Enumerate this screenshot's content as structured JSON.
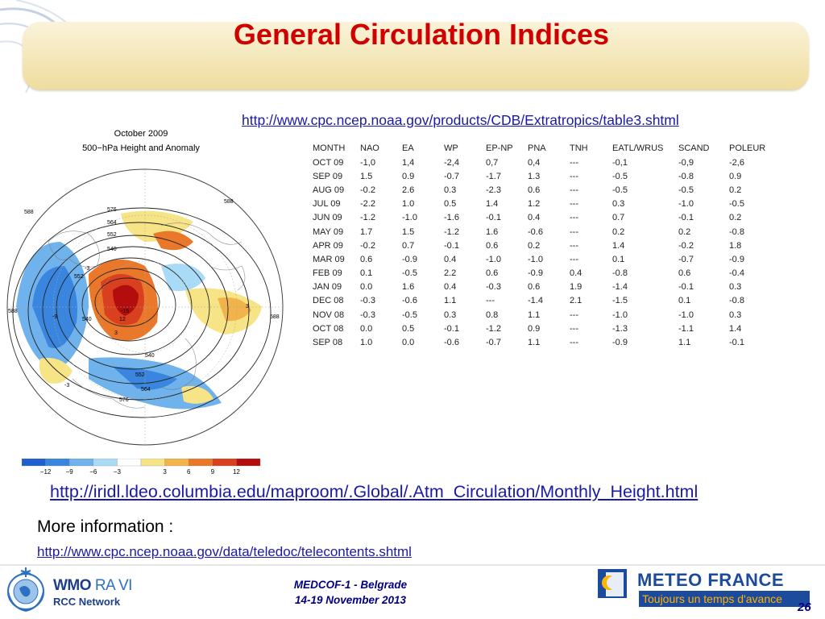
{
  "slide": {
    "title": "General Circulation Indices",
    "link_table": "http://www.cpc.ncep.noaa.gov/products/CDB/Extratropics/table3.shtml",
    "link_map": "http://iridl.ldeo.columbia.edu/maproom/.Global/.Atm_Circulation/Monthly_Height.html",
    "more_info": "More information :",
    "link_more": "http://www.cpc.ncep.noaa.gov/data/teledoc/telecontents.shtml",
    "page_number": "26"
  },
  "map": {
    "title_line1": "October 2009",
    "title_line2": "500−hPa Height and Anomaly",
    "contour_labels": [
      "588",
      "588",
      "588",
      "588",
      "576",
      "564",
      "552",
      "540",
      "540",
      "540",
      "564",
      "576",
      "552",
      "552",
      "-3",
      "-3",
      "3",
      "3",
      "-9",
      "-15",
      "12"
    ],
    "colorbar_ticks": [
      "−12",
      "−9",
      "−6",
      "−3",
      "3",
      "6",
      "9",
      "12"
    ],
    "colorbar_colors": [
      "#1f5fcf",
      "#3a86de",
      "#6fb2ec",
      "#a9daf6",
      "#ffffff",
      "#f7e487",
      "#f2b34a",
      "#e9782a",
      "#d9401f",
      "#b30d0d"
    ]
  },
  "table": {
    "headers": [
      "MONTH",
      "NAO",
      "EA",
      "WP",
      "EP-NP",
      "PNA",
      "TNH",
      "EATL/WRUS",
      "SCAND",
      "POLEUR"
    ],
    "rows": [
      [
        "OCT 09",
        "-1,0",
        "1,4",
        "-2,4",
        "0,7",
        "0,4",
        "---",
        "-0,1",
        "-0,9",
        "-2,6"
      ],
      [
        "SEP 09",
        "1.5",
        "0.9",
        "-0.7",
        "-1.7",
        "1.3",
        "---",
        "-0.5",
        "-0.8",
        "0.9"
      ],
      [
        "AUG 09",
        "-0.2",
        "2.6",
        "0.3",
        "-2.3",
        "0.6",
        "---",
        "-0.5",
        "-0.5",
        "0.2"
      ],
      [
        "JUL 09",
        "-2.2",
        "1.0",
        "0.5",
        "1.4",
        "1.2",
        "---",
        "0.3",
        "-1.0",
        "-0.5"
      ],
      [
        "JUN 09",
        "-1.2",
        "-1.0",
        "-1.6",
        "-0.1",
        "0.4",
        "---",
        "0.7",
        "-0.1",
        "0.2"
      ],
      [
        "MAY 09",
        "1.7",
        "1.5",
        "-1.2",
        "1.6",
        "-0.6",
        "---",
        "0.2",
        "0.2",
        "-0.8"
      ],
      [
        "APR 09",
        "-0.2",
        "0.7",
        "-0.1",
        "0.6",
        "0.2",
        "---",
        "1.4",
        "-0.2",
        "1.8"
      ],
      [
        "MAR 09",
        "0.6",
        "-0.9",
        "0.4",
        "-1.0",
        "-1.0",
        "---",
        "0.1",
        "-0.7",
        "-0.9"
      ],
      [
        "FEB 09",
        "0.1",
        "-0.5",
        "2.2",
        "0.6",
        "-0.9",
        "0.4",
        "-0.8",
        "0.6",
        "-0.4"
      ],
      [
        "JAN 09",
        "0.0",
        "1.6",
        "0.4",
        "-0.3",
        "0.6",
        "1.9",
        "-1.4",
        "-0.1",
        "0.3"
      ],
      [
        "DEC 08",
        "-0.3",
        "-0.6",
        "1.1",
        "---",
        "-1.4",
        "2.1",
        "-1.5",
        "0.1",
        "-0.8"
      ],
      [
        "NOV 08",
        "-0.3",
        "-0.5",
        "0.3",
        "0.8",
        "1.1",
        "---",
        "-1.0",
        "-1.0",
        "0.3"
      ],
      [
        "OCT 08",
        "0.0",
        "0.5",
        "-0.1",
        "-1.2",
        "0.9",
        "---",
        "-1.3",
        "-1.1",
        "1.4"
      ],
      [
        "SEP 08",
        "1.0",
        "0.0",
        "-0.6",
        "-0.7",
        "1.1",
        "---",
        "-0.9",
        "1.1",
        "-0.1"
      ]
    ]
  },
  "footer": {
    "wmo_line1": "WMO",
    "wmo_line1b": "RA VI",
    "wmo_line2": "RCC Network",
    "event_line1": "MEDCOF-1 - Belgrade",
    "event_line2": "14-19 November 2013",
    "mf_name": "METEO FRANCE",
    "mf_tagline": "Toujours un temps d'avance"
  },
  "colors": {
    "title": "#d00000",
    "link": "#1a1aa6",
    "title_bar": "#f3e4ad",
    "footer_text": "#000080",
    "mf_blue": "#1c4a9c",
    "mf_orange": "#ffb400"
  }
}
